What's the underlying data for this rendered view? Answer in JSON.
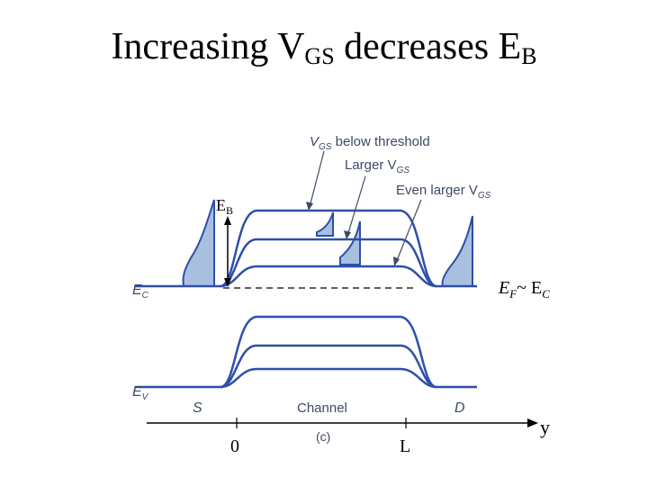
{
  "title": {
    "part1": "Increasing V",
    "sub1": "GS",
    "part2": " decreases E",
    "sub2": "B"
  },
  "annotations": {
    "vgs_below": "V",
    "vgs_below_sub": "GS",
    "vgs_below_rest": " below threshold",
    "larger": "Larger V",
    "larger_sub": "GS",
    "even_larger": "Even larger V",
    "even_larger_sub": "GS"
  },
  "labels": {
    "eb": "E",
    "eb_sub": "B",
    "ec": "E",
    "ec_sub": "C",
    "ev": "E",
    "ev_sub": "V",
    "ef": "E",
    "ef_sub": "F",
    "ef_rest": "~ E",
    "ef_rest_sub": "C",
    "source": "S",
    "channel": "Channel",
    "drain": "D",
    "fig": "(c)",
    "tick0": "0",
    "tickL": "L",
    "axis": "y"
  },
  "colors": {
    "curve": "#2f4fa8",
    "fill": "#a9bfe0",
    "text": "#3d4a66"
  }
}
